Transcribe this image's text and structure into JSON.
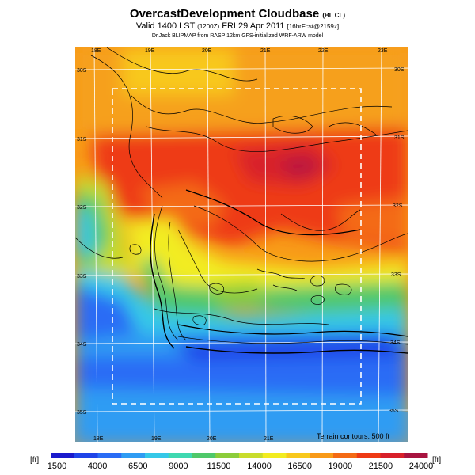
{
  "header": {
    "title": "OvercastDevelopment Cloudbase",
    "title_suffix": "(BL CL)",
    "valid_prefix": "Valid 1400 LST",
    "valid_utc": "(1200Z)",
    "valid_date": "FRI 29 Apr 2011",
    "forecast": "[16hrFcst@2159z]",
    "credit": "Dr.Jack BLIPMAP from RASP 12km GFS-initialized WRF-ARW model"
  },
  "map": {
    "lon_labels_top": [
      "18E",
      "19E",
      "20E",
      "21E",
      "22E",
      "23E"
    ],
    "lon_labels_bottom": [
      "18E",
      "19E",
      "20E",
      "21E"
    ],
    "lat_labels_left": [
      "30S",
      "31S",
      "32S",
      "33S",
      "34S",
      "35S"
    ],
    "lat_labels_right": [
      "30S",
      "31S",
      "32S",
      "33S",
      "34S",
      "35S"
    ],
    "terrain_note": "Terrain contours: 500 ft"
  },
  "scale": {
    "unit_left": "[ft]",
    "unit_right": "[ft]",
    "ticks": [
      "1500",
      "4000",
      "6500",
      "9000",
      "11500",
      "14000",
      "16500",
      "19000",
      "21500",
      "24000"
    ],
    "colors": [
      "#1a1acc",
      "#1f44e8",
      "#2a6cf5",
      "#2f9cf3",
      "#35c8e8",
      "#3fd8b0",
      "#4fc86a",
      "#8ccc3a",
      "#c8dc2c",
      "#f2ec20",
      "#f8c81c",
      "#f89a18",
      "#f46a14",
      "#ee3a14",
      "#d8202a",
      "#a81440"
    ]
  }
}
